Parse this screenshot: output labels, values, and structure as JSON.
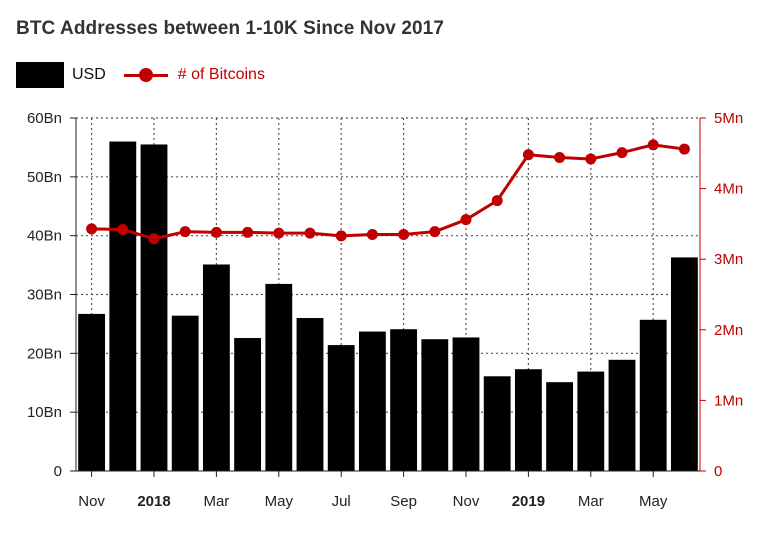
{
  "title": "BTC Addresses between 1-10K Since Nov 2017",
  "legend": {
    "bar_label": "USD",
    "line_label": "# of Bitcoins"
  },
  "colors": {
    "bar": "#000000",
    "line": "#c00000",
    "grid": "#555555"
  },
  "chart_data": {
    "type": "bar",
    "title": "BTC Addresses between 1-10K Since Nov 2017",
    "grid": true,
    "legend_position": "top-left",
    "categories": [
      "Nov 2017",
      "Dec 2017",
      "Jan 2018",
      "Feb 2018",
      "Mar 2018",
      "Apr 2018",
      "May 2018",
      "Jun 2018",
      "Jul 2018",
      "Aug 2018",
      "Sep 2018",
      "Oct 2018",
      "Nov 2018",
      "Dec 2018",
      "Jan 2019",
      "Feb 2019",
      "Mar 2019",
      "Apr 2019",
      "May 2019",
      "Jun 2019"
    ],
    "x_tick_labels": [
      {
        "category": "Nov 2017",
        "label": "Nov",
        "bold": false
      },
      {
        "category": "Jan 2018",
        "label": "2018",
        "bold": true
      },
      {
        "category": "Mar 2018",
        "label": "Mar",
        "bold": false
      },
      {
        "category": "May 2018",
        "label": "May",
        "bold": false
      },
      {
        "category": "Jul 2018",
        "label": "Jul",
        "bold": false
      },
      {
        "category": "Sep 2018",
        "label": "Sep",
        "bold": false
      },
      {
        "category": "Nov 2018",
        "label": "Nov",
        "bold": false
      },
      {
        "category": "Jan 2019",
        "label": "2019",
        "bold": true
      },
      {
        "category": "Mar 2019",
        "label": "Mar",
        "bold": false
      },
      {
        "category": "May 2019",
        "label": "May",
        "bold": false
      }
    ],
    "series": [
      {
        "name": "USD",
        "type": "bar",
        "axis": "left",
        "values": [
          26.7,
          56.0,
          55.5,
          26.4,
          35.1,
          22.6,
          31.8,
          26.0,
          21.4,
          23.7,
          24.1,
          22.4,
          22.7,
          16.1,
          17.3,
          15.1,
          16.9,
          18.9,
          25.7,
          36.3
        ]
      },
      {
        "name": "# of Bitcoins",
        "type": "line",
        "axis": "right",
        "values": [
          3.43,
          3.42,
          3.29,
          3.39,
          3.38,
          3.38,
          3.37,
          3.37,
          3.33,
          3.35,
          3.35,
          3.39,
          3.56,
          3.83,
          4.48,
          4.44,
          4.42,
          4.51,
          4.62,
          4.56
        ]
      }
    ],
    "y_left": {
      "ylim": [
        0,
        60
      ],
      "ticks": [
        0,
        10,
        20,
        30,
        40,
        50,
        60
      ],
      "tick_labels": [
        "0",
        "10Bn",
        "20Bn",
        "30Bn",
        "40Bn",
        "50Bn",
        "60Bn"
      ]
    },
    "y_right": {
      "ylim": [
        0,
        5
      ],
      "ticks": [
        0,
        1,
        2,
        3,
        4,
        5
      ],
      "tick_labels": [
        "0",
        "1Mn",
        "2Mn",
        "3Mn",
        "4Mn",
        "5Mn"
      ]
    }
  }
}
